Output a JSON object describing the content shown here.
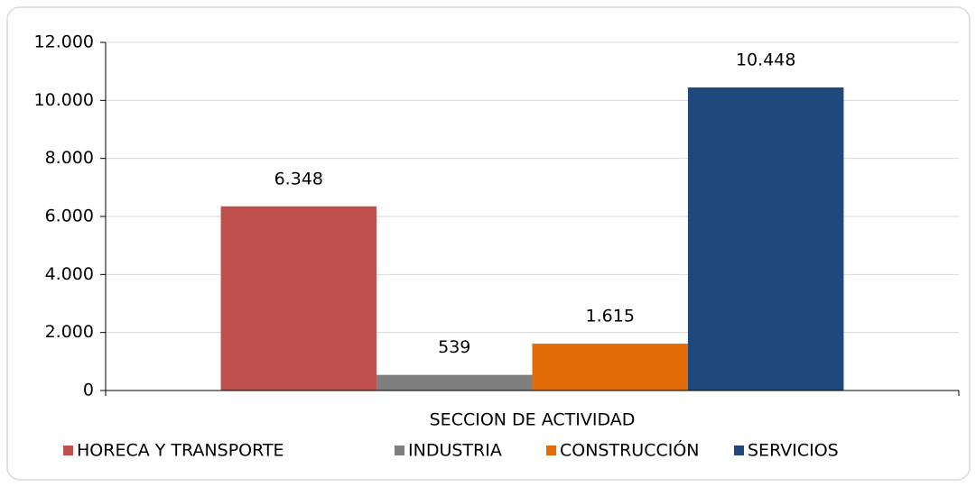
{
  "chart_data": {
    "type": "bar",
    "categories": [
      "SECCION DE ACTIVIDAD"
    ],
    "series": [
      {
        "name": "HORECA Y TRANSPORTE",
        "color": "#c0504d",
        "values": [
          6348
        ],
        "value_labels": [
          "6.348"
        ]
      },
      {
        "name": "INDUSTRIA",
        "color": "#7f7f7f",
        "values": [
          539
        ]
      },
      {
        "name": "CONSTRUCCIÓN",
        "color": "#e36c09",
        "values": [
          1615
        ],
        "value_labels": [
          "1.615"
        ]
      },
      {
        "name": "SERVICIOS",
        "color": "#1f497d",
        "values": [
          10448
        ],
        "value_labels": [
          "10.448"
        ]
      }
    ],
    "ylim": [
      0,
      12000
    ],
    "yticks": [
      0,
      {
        "value": 2000,
        "label": "2.000"
      },
      {
        "value": 4000,
        "label": "4.000"
      },
      {
        "value": 6000,
        "label": "6.000"
      },
      {
        "value": 8000,
        "label": "8.000"
      },
      {
        "value": 10000,
        "label": "10.000"
      },
      {
        "value": 12000,
        "label": "12.000"
      }
    ],
    "grid": true,
    "legend": "bottom"
  }
}
